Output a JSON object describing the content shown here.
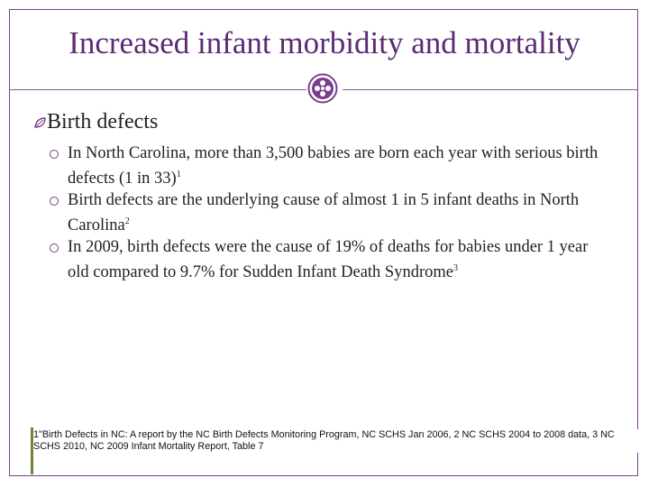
{
  "slide": {
    "title": "Increased infant morbidity and mortality",
    "heading": "Birth defects",
    "items": [
      {
        "text": "In North Carolina, more than 3,500 babies are born each year  with serious  birth defects (1 in 33)",
        "sup": "1"
      },
      {
        "text": "Birth defects are the underlying cause of almost 1 in  5 infant deaths in North Carolina",
        "sup": "2"
      },
      {
        "text": "In 2009, birth defects were the cause of 19%  of deaths for babies under 1 year old compared to 9.7% for Sudden Infant Death Syndrome",
        "sup": "3"
      }
    ],
    "footnote": "1\"Birth Defects in NC: A report by the NC Birth Defects Monitoring Program,  NC SCHS Jan 2006,  2 NC SCHS 2004 to 2008  data,  3 NC SCHS 2010, NC 2009 Infant Mortality Report, Table 7"
  },
  "icons": {
    "emblem": "ornament-emblem-icon",
    "heading_bullet": "leaf-bullet-icon",
    "item_bullet": "ring-bullet-icon"
  },
  "colors": {
    "accent": "#7a3f8c",
    "title": "#5b2a73",
    "footer_bar": "#6d8a33"
  }
}
